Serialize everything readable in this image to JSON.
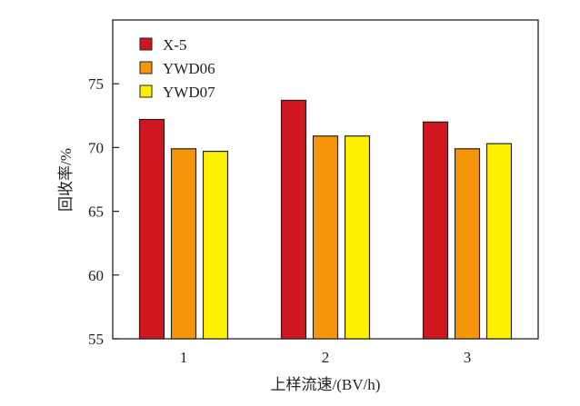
{
  "chart_data": {
    "type": "bar",
    "title": "",
    "xlabel": "上样流速/(BV/h)",
    "ylabel": "回收率/%",
    "categories": [
      "1",
      "2",
      "3"
    ],
    "ylim": [
      55,
      80
    ],
    "yticks": [
      55,
      60,
      65,
      70,
      75
    ],
    "grid": false,
    "legend_position": "top-left",
    "series": [
      {
        "name": "X-5",
        "color": "#d0161e",
        "values": [
          72.2,
          73.7,
          72.0
        ]
      },
      {
        "name": "YWD06",
        "color": "#f5960a",
        "values": [
          69.9,
          70.9,
          69.9
        ]
      },
      {
        "name": "YWD07",
        "color": "#fff000",
        "values": [
          69.7,
          70.9,
          70.3
        ]
      }
    ]
  }
}
